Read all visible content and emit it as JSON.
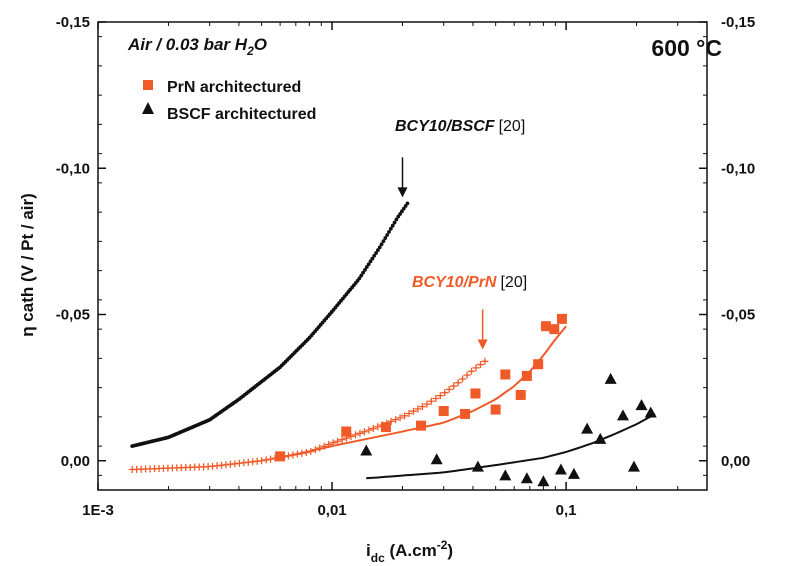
{
  "chart_data": {
    "type": "scatter",
    "title": "",
    "xlabel_main": "i",
    "xlabel_sub": "dc",
    "xlabel_unit": " (A.cm",
    "xlabel_exp": "-2",
    "xlabel_close": ")",
    "ylabel": "η cath (V / Pt / air)",
    "x_scale": "log",
    "xlim": [
      0.001,
      0.4
    ],
    "ylim": [
      0.01,
      -0.15
    ],
    "x_ticks": [
      {
        "value": 0.001,
        "label": "1E-3"
      },
      {
        "value": 0.01,
        "label": "0,01"
      },
      {
        "value": 0.1,
        "label": "0,1"
      }
    ],
    "y_ticks": [
      {
        "value": 0.0,
        "label": "0,00"
      },
      {
        "value": -0.05,
        "label": "-0,05"
      },
      {
        "value": -0.1,
        "label": "-0,10"
      },
      {
        "value": -0.15,
        "label": "-0,15"
      }
    ],
    "condition_text": {
      "main": "Air / 0.03 bar H",
      "sub": "2",
      "end": "O"
    },
    "temperature_text": "600 °C",
    "legend_position": "top-left",
    "series": [
      {
        "name": "PrN architectured",
        "marker": "square",
        "color": "#f05a28",
        "points": [
          [
            0.006,
            -0.0015
          ],
          [
            0.0115,
            -0.01
          ],
          [
            0.017,
            -0.0115
          ],
          [
            0.024,
            -0.012
          ],
          [
            0.03,
            -0.017
          ],
          [
            0.037,
            -0.016
          ],
          [
            0.041,
            -0.023
          ],
          [
            0.05,
            -0.0175
          ],
          [
            0.055,
            -0.0295
          ],
          [
            0.064,
            -0.0225
          ],
          [
            0.068,
            -0.029
          ],
          [
            0.076,
            -0.033
          ],
          [
            0.082,
            -0.046
          ],
          [
            0.089,
            -0.045
          ],
          [
            0.096,
            -0.0485
          ]
        ],
        "fit": [
          [
            0.006,
            -0.001
          ],
          [
            0.01,
            -0.005
          ],
          [
            0.02,
            -0.01
          ],
          [
            0.03,
            -0.013
          ],
          [
            0.04,
            -0.017
          ],
          [
            0.05,
            -0.021
          ],
          [
            0.06,
            -0.0255
          ],
          [
            0.07,
            -0.0305
          ],
          [
            0.08,
            -0.036
          ],
          [
            0.09,
            -0.0415
          ],
          [
            0.1,
            -0.046
          ]
        ]
      },
      {
        "name": "BSCF architectured",
        "marker": "triangle",
        "color": "#111111",
        "points": [
          [
            0.014,
            -0.0035
          ],
          [
            0.028,
            -0.0005
          ],
          [
            0.042,
            0.002
          ],
          [
            0.055,
            0.005
          ],
          [
            0.068,
            0.006
          ],
          [
            0.08,
            0.007
          ],
          [
            0.095,
            0.003
          ],
          [
            0.108,
            0.0045
          ],
          [
            0.123,
            -0.011
          ],
          [
            0.14,
            -0.0075
          ],
          [
            0.155,
            -0.028
          ],
          [
            0.175,
            -0.0155
          ],
          [
            0.195,
            0.002
          ],
          [
            0.21,
            -0.019
          ],
          [
            0.23,
            -0.0165
          ]
        ],
        "fit": [
          [
            0.014,
            0.006
          ],
          [
            0.03,
            0.004
          ],
          [
            0.05,
            0.0015
          ],
          [
            0.08,
            -0.001
          ],
          [
            0.1,
            -0.003
          ],
          [
            0.13,
            -0.006
          ],
          [
            0.16,
            -0.009
          ],
          [
            0.2,
            -0.0125
          ],
          [
            0.24,
            -0.016
          ]
        ]
      },
      {
        "name": "BCY10/BSCF",
        "reference": "[20]",
        "marker": "dot",
        "color": "#111111",
        "curve": [
          [
            0.0014,
            -0.005
          ],
          [
            0.002,
            -0.008
          ],
          [
            0.003,
            -0.014
          ],
          [
            0.004,
            -0.021
          ],
          [
            0.006,
            -0.032
          ],
          [
            0.008,
            -0.042
          ],
          [
            0.01,
            -0.051
          ],
          [
            0.013,
            -0.062
          ],
          [
            0.016,
            -0.073
          ],
          [
            0.019,
            -0.083
          ],
          [
            0.021,
            -0.088
          ]
        ],
        "arrow_at": [
          0.02,
          -0.088
        ]
      },
      {
        "name": "BCY10/PrN",
        "reference": "[20]",
        "marker": "plus",
        "color": "#f05a28",
        "curve": [
          [
            0.0014,
            0.003
          ],
          [
            0.003,
            0.002
          ],
          [
            0.005,
            0.0
          ],
          [
            0.008,
            -0.003
          ],
          [
            0.01,
            -0.006
          ],
          [
            0.015,
            -0.011
          ],
          [
            0.02,
            -0.015
          ],
          [
            0.025,
            -0.019
          ],
          [
            0.03,
            -0.023
          ],
          [
            0.035,
            -0.027
          ],
          [
            0.04,
            -0.031
          ],
          [
            0.045,
            -0.034
          ]
        ],
        "arrow_at": [
          0.044,
          -0.036
        ]
      }
    ]
  }
}
